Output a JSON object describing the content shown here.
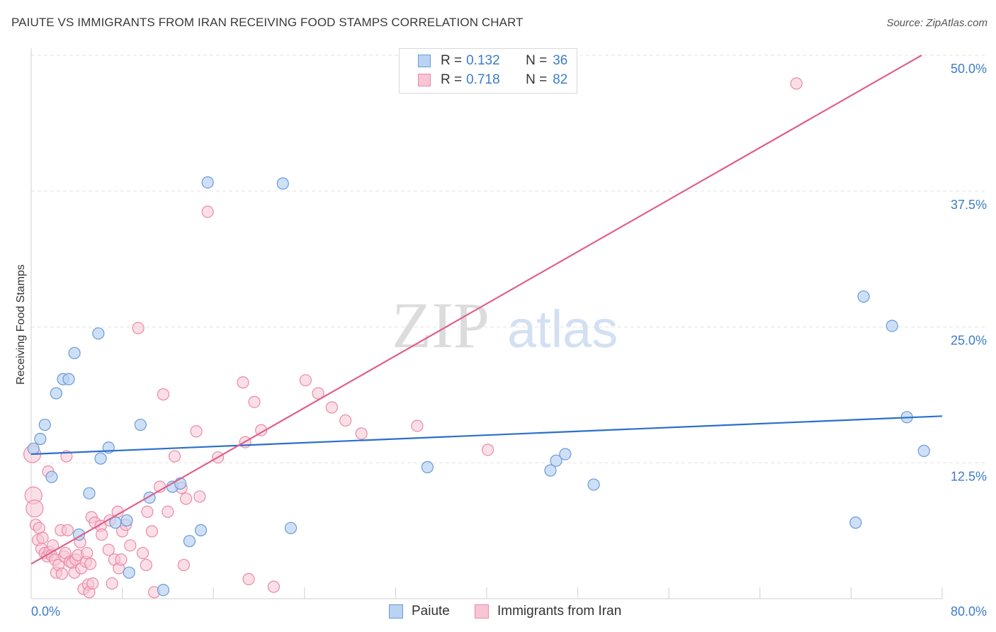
{
  "title": "PAIUTE VS IMMIGRANTS FROM IRAN RECEIVING FOOD STAMPS CORRELATION CHART",
  "source": "Source: ZipAtlas.com",
  "watermark": {
    "zip": "ZIP",
    "atlas": "atlas"
  },
  "legend_top": {
    "rows": [
      {
        "r_label": "R =",
        "r_value": "0.132",
        "n_label": "N =",
        "n_value": "36"
      },
      {
        "r_label": "R =",
        "r_value": "0.718",
        "n_label": "N =",
        "n_value": "82"
      }
    ]
  },
  "colors": {
    "blue_fill": "#b9d3f3",
    "blue_stroke": "#6a9ad6",
    "blue_line": "#2b6fcb",
    "pink_fill": "#f7c5d4",
    "pink_stroke": "#e98aa8",
    "pink_line": "#e0608a",
    "tick_label": "#3d7cc9",
    "grid": "#e3e3e3"
  },
  "chart_data": {
    "type": "scatter",
    "title": "PAIUTE VS IMMIGRANTS FROM IRAN RECEIVING FOOD STAMPS CORRELATION CHART",
    "xlabel": "",
    "ylabel": "Receiving Food Stamps",
    "xlim": [
      0,
      80
    ],
    "ylim": [
      0,
      50
    ],
    "x_tick_labels": [
      "0.0%",
      "80.0%"
    ],
    "y_ticks": [
      12.5,
      25.0,
      37.5,
      50.0
    ],
    "y_tick_labels": [
      "12.5%",
      "25.0%",
      "37.5%",
      "50.0%"
    ],
    "series": [
      {
        "name": "Paiute",
        "color": "blue",
        "trend": {
          "x0": 0,
          "y0": 13.3,
          "x1": 80,
          "y1": 16.8
        },
        "points": [
          [
            0.2,
            13.8
          ],
          [
            0.8,
            14.7
          ],
          [
            1.2,
            16.0
          ],
          [
            1.8,
            11.2
          ],
          [
            2.2,
            18.9
          ],
          [
            2.8,
            20.2
          ],
          [
            3.3,
            20.2
          ],
          [
            3.8,
            22.6
          ],
          [
            4.2,
            5.9
          ],
          [
            5.1,
            9.7
          ],
          [
            5.9,
            24.4
          ],
          [
            6.1,
            12.9
          ],
          [
            6.8,
            13.9
          ],
          [
            7.4,
            7.0
          ],
          [
            8.4,
            7.2
          ],
          [
            8.6,
            2.4
          ],
          [
            9.6,
            16.0
          ],
          [
            10.4,
            9.3
          ],
          [
            11.6,
            0.8
          ],
          [
            12.4,
            10.3
          ],
          [
            13.1,
            10.6
          ],
          [
            13.9,
            5.3
          ],
          [
            14.9,
            6.3
          ],
          [
            15.5,
            38.3
          ],
          [
            22.1,
            38.2
          ],
          [
            22.8,
            6.5
          ],
          [
            34.8,
            12.1
          ],
          [
            45.6,
            11.8
          ],
          [
            46.1,
            12.7
          ],
          [
            46.9,
            13.3
          ],
          [
            49.4,
            10.5
          ],
          [
            72.4,
            7.0
          ],
          [
            73.1,
            27.8
          ],
          [
            75.6,
            25.1
          ],
          [
            76.9,
            16.7
          ],
          [
            78.4,
            13.6
          ]
        ]
      },
      {
        "name": "Immigrants from Iran",
        "color": "pink",
        "trend": {
          "x0": 0,
          "y0": 3.2,
          "x1": 78.2,
          "y1": 50.0
        },
        "points": [
          [
            0.1,
            13.3
          ],
          [
            0.2,
            9.5
          ],
          [
            0.3,
            8.3
          ],
          [
            0.4,
            6.8
          ],
          [
            0.6,
            5.4
          ],
          [
            0.7,
            6.5
          ],
          [
            0.9,
            4.6
          ],
          [
            1.0,
            5.6
          ],
          [
            1.2,
            4.2
          ],
          [
            1.4,
            3.9
          ],
          [
            1.5,
            11.7
          ],
          [
            1.6,
            4.3
          ],
          [
            1.8,
            4.0
          ],
          [
            1.9,
            4.9
          ],
          [
            2.1,
            3.6
          ],
          [
            2.2,
            2.4
          ],
          [
            2.4,
            3.1
          ],
          [
            2.6,
            6.3
          ],
          [
            2.7,
            2.3
          ],
          [
            2.9,
            3.9
          ],
          [
            3.0,
            4.2
          ],
          [
            3.1,
            13.1
          ],
          [
            3.2,
            6.3
          ],
          [
            3.4,
            3.4
          ],
          [
            3.6,
            3.3
          ],
          [
            3.8,
            2.4
          ],
          [
            3.9,
            3.6
          ],
          [
            4.1,
            4.0
          ],
          [
            4.3,
            5.2
          ],
          [
            4.4,
            2.8
          ],
          [
            4.6,
            0.9
          ],
          [
            4.8,
            3.4
          ],
          [
            4.9,
            4.2
          ],
          [
            5.0,
            1.3
          ],
          [
            5.1,
            0.6
          ],
          [
            5.2,
            3.2
          ],
          [
            5.3,
            7.5
          ],
          [
            5.4,
            1.4
          ],
          [
            5.6,
            7.0
          ],
          [
            6.1,
            6.7
          ],
          [
            6.2,
            5.9
          ],
          [
            6.8,
            4.5
          ],
          [
            6.9,
            7.2
          ],
          [
            7.1,
            1.4
          ],
          [
            7.3,
            3.6
          ],
          [
            7.6,
            8.0
          ],
          [
            7.7,
            2.8
          ],
          [
            7.9,
            3.6
          ],
          [
            8.0,
            6.2
          ],
          [
            8.3,
            6.8
          ],
          [
            8.7,
            4.9
          ],
          [
            9.4,
            24.9
          ],
          [
            9.8,
            4.2
          ],
          [
            10.1,
            3.1
          ],
          [
            10.2,
            8.0
          ],
          [
            10.6,
            6.2
          ],
          [
            10.8,
            0.6
          ],
          [
            11.3,
            10.3
          ],
          [
            11.6,
            18.8
          ],
          [
            12.0,
            8.0
          ],
          [
            12.6,
            13.1
          ],
          [
            13.2,
            10.2
          ],
          [
            13.4,
            3.1
          ],
          [
            13.6,
            9.2
          ],
          [
            14.5,
            15.4
          ],
          [
            14.8,
            9.4
          ],
          [
            15.5,
            35.6
          ],
          [
            16.4,
            13.0
          ],
          [
            18.6,
            19.9
          ],
          [
            18.8,
            14.4
          ],
          [
            19.1,
            1.8
          ],
          [
            19.6,
            18.1
          ],
          [
            20.2,
            15.5
          ],
          [
            21.3,
            1.1
          ],
          [
            24.1,
            20.1
          ],
          [
            25.2,
            18.9
          ],
          [
            26.4,
            17.6
          ],
          [
            27.6,
            16.4
          ],
          [
            29.0,
            15.2
          ],
          [
            33.9,
            15.9
          ],
          [
            40.1,
            13.7
          ],
          [
            67.2,
            47.4
          ]
        ]
      }
    ]
  },
  "legend_bottom": [
    "Paiute",
    "Immigrants from Iran"
  ]
}
